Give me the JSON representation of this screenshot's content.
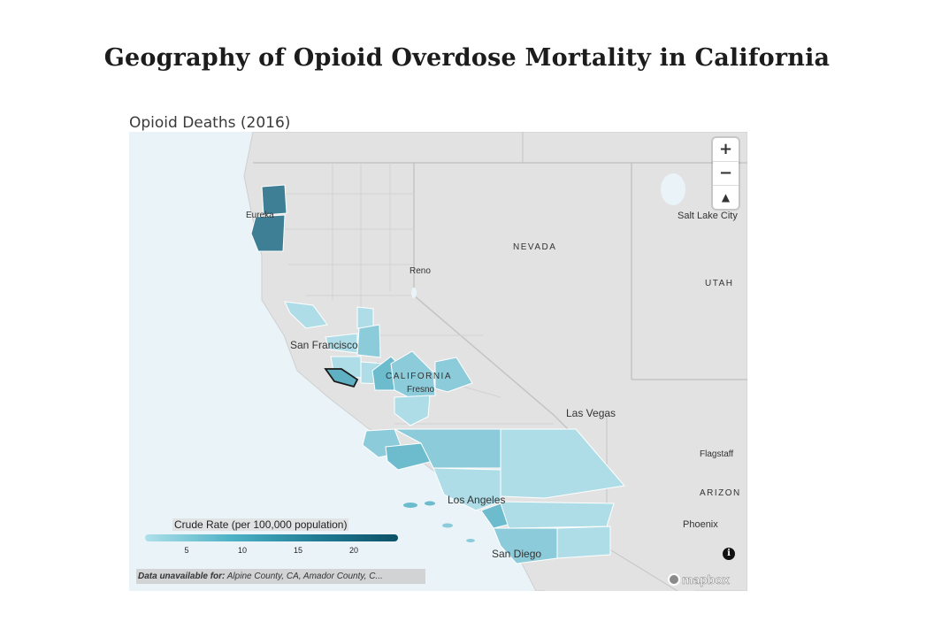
{
  "page_title": "Geography of Opioid Overdose Mortality in California",
  "map_title": "Opioid Deaths (2016)",
  "place_labels": {
    "eureka": "Eureka",
    "reno": "Reno",
    "nevada": "NEVADA",
    "utah": "UTAH",
    "salt_lake_city": "Salt Lake City",
    "san_francisco": "San Francisco",
    "california": "CALIFORNIA",
    "fresno": "Fresno",
    "las_vegas": "Las Vegas",
    "flagstaff": "Flagstaff",
    "arizona": "ARIZON",
    "phoenix": "Phoenix",
    "los_angeles": "Los Angeles",
    "san_diego": "San Diego"
  },
  "zoom_controls": {
    "zoom_in": "+",
    "zoom_out": "−",
    "compass": "▲"
  },
  "legend": {
    "title": "Crude Rate (per 100,000 population)",
    "ticks": [
      "5",
      "10",
      "15",
      "20"
    ]
  },
  "unavailable": {
    "label": "Data unavailable for:",
    "text": " Alpine County, CA, Amador County, C..."
  },
  "info_icon": "i",
  "attribution": "mapbox",
  "colors": {
    "water": "#eaf4f8",
    "land": "#e4e4e4",
    "county_light": "#aedde8",
    "county_mid": "#8ccbda",
    "county_strong": "#6cbccd",
    "county_dark": "#3f7f96",
    "selected_county": "#5fb0c2"
  }
}
